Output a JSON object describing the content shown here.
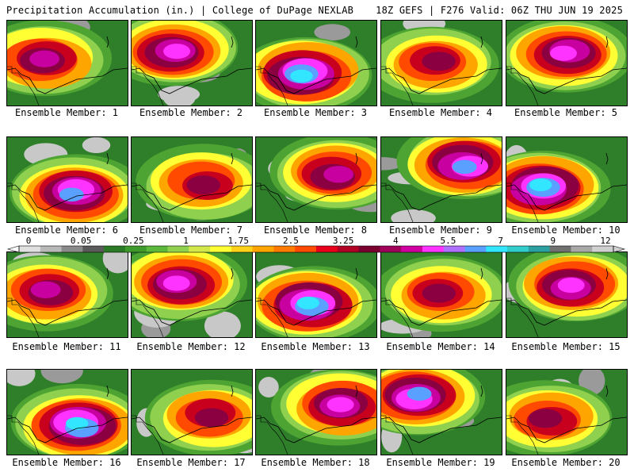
{
  "header": {
    "title": "Precipitation Accumulation (in.) | College of DuPage NEXLAB",
    "run": "18Z GEFS | F276 Valid: 06Z THU JUN 19 2025"
  },
  "colorbar": {
    "labels": [
      "0",
      "0.05",
      "0.25",
      "1",
      "1.75",
      "2.5",
      "3.25",
      "4",
      "5.5",
      "7",
      "9",
      "12"
    ],
    "colors": [
      "#e0e0e0",
      "#b8b8b8",
      "#8a8a8a",
      "#5a5a5a",
      "#2a7a25",
      "#3f9a2c",
      "#5cb83a",
      "#8fd14f",
      "#d2e84a",
      "#ffff33",
      "#ffd11a",
      "#ffa500",
      "#ff7a00",
      "#ff4a00",
      "#e8001a",
      "#b00024",
      "#7a0030",
      "#a0005a",
      "#d000a0",
      "#ff33ff",
      "#b070ff",
      "#5aa0ff",
      "#33e6ff",
      "#33cccc",
      "#2aa0a0",
      "#707070",
      "#a8a8a8",
      "#d0d0d0"
    ]
  },
  "members": [
    {
      "label": "Ensemble Member: 1"
    },
    {
      "label": "Ensemble Member: 2"
    },
    {
      "label": "Ensemble Member: 3"
    },
    {
      "label": "Ensemble Member: 4"
    },
    {
      "label": "Ensemble Member: 5"
    },
    {
      "label": "Ensemble Member: 6"
    },
    {
      "label": "Ensemble Member: 7"
    },
    {
      "label": "Ensemble Member: 8"
    },
    {
      "label": "Ensemble Member: 9"
    },
    {
      "label": "Ensemble Member: 10"
    },
    {
      "label": "Ensemble Member: 11"
    },
    {
      "label": "Ensemble Member: 12"
    },
    {
      "label": "Ensemble Member: 13"
    },
    {
      "label": "Ensemble Member: 14"
    },
    {
      "label": "Ensemble Member: 15"
    },
    {
      "label": "Ensemble Member: 16"
    },
    {
      "label": "Ensemble Member: 17"
    },
    {
      "label": "Ensemble Member: 18"
    },
    {
      "label": "Ensemble Member: 19"
    },
    {
      "label": "Ensemble Member: 20"
    }
  ]
}
